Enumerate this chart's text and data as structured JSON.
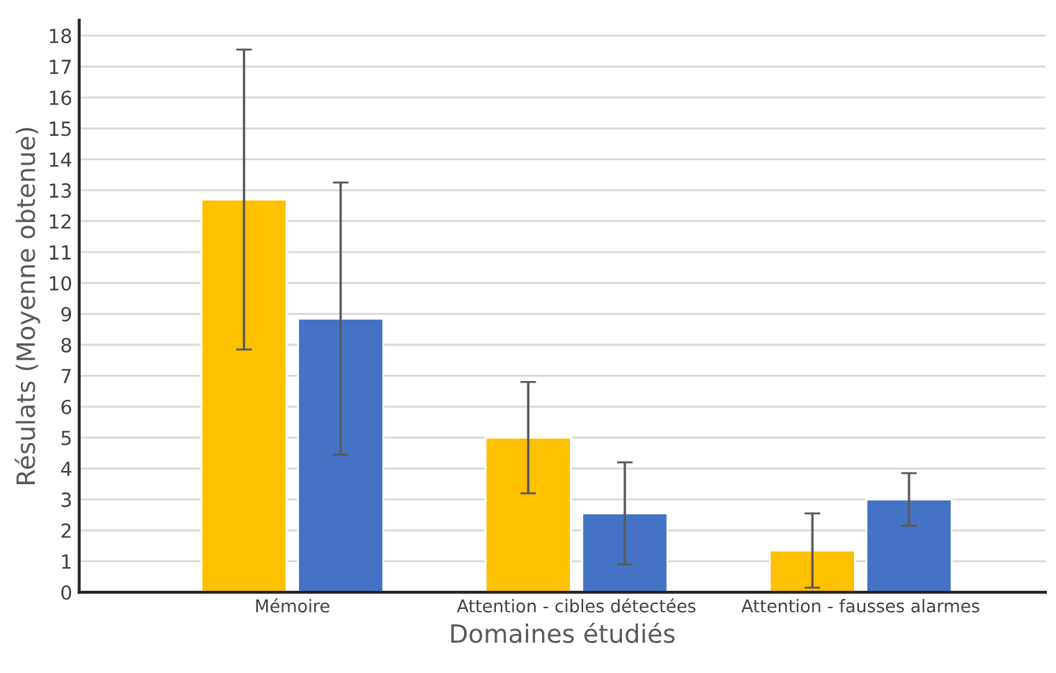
{
  "chart_data": {
    "type": "bar",
    "xlabel": "Domaines étudiés",
    "ylabel": "Résulats (Moyenne obtenue)",
    "categories": [
      "Mémoire",
      "Attention - cibles détectées",
      "Attention - fausses alarmes"
    ],
    "series": [
      {
        "color": "#ffc000",
        "values": [
          12.7,
          5.0,
          1.35
        ],
        "errors": [
          4.85,
          1.8,
          1.2
        ]
      },
      {
        "color": "#4472c4",
        "values": [
          8.85,
          2.55,
          3.0
        ],
        "errors": [
          4.4,
          1.65,
          0.85
        ]
      }
    ],
    "ylim": [
      0,
      18.5
    ],
    "yticks": [
      0,
      1,
      2,
      3,
      4,
      5,
      6,
      7,
      8,
      9,
      10,
      11,
      12,
      13,
      14,
      15,
      16,
      17,
      18
    ],
    "grid": "y"
  }
}
